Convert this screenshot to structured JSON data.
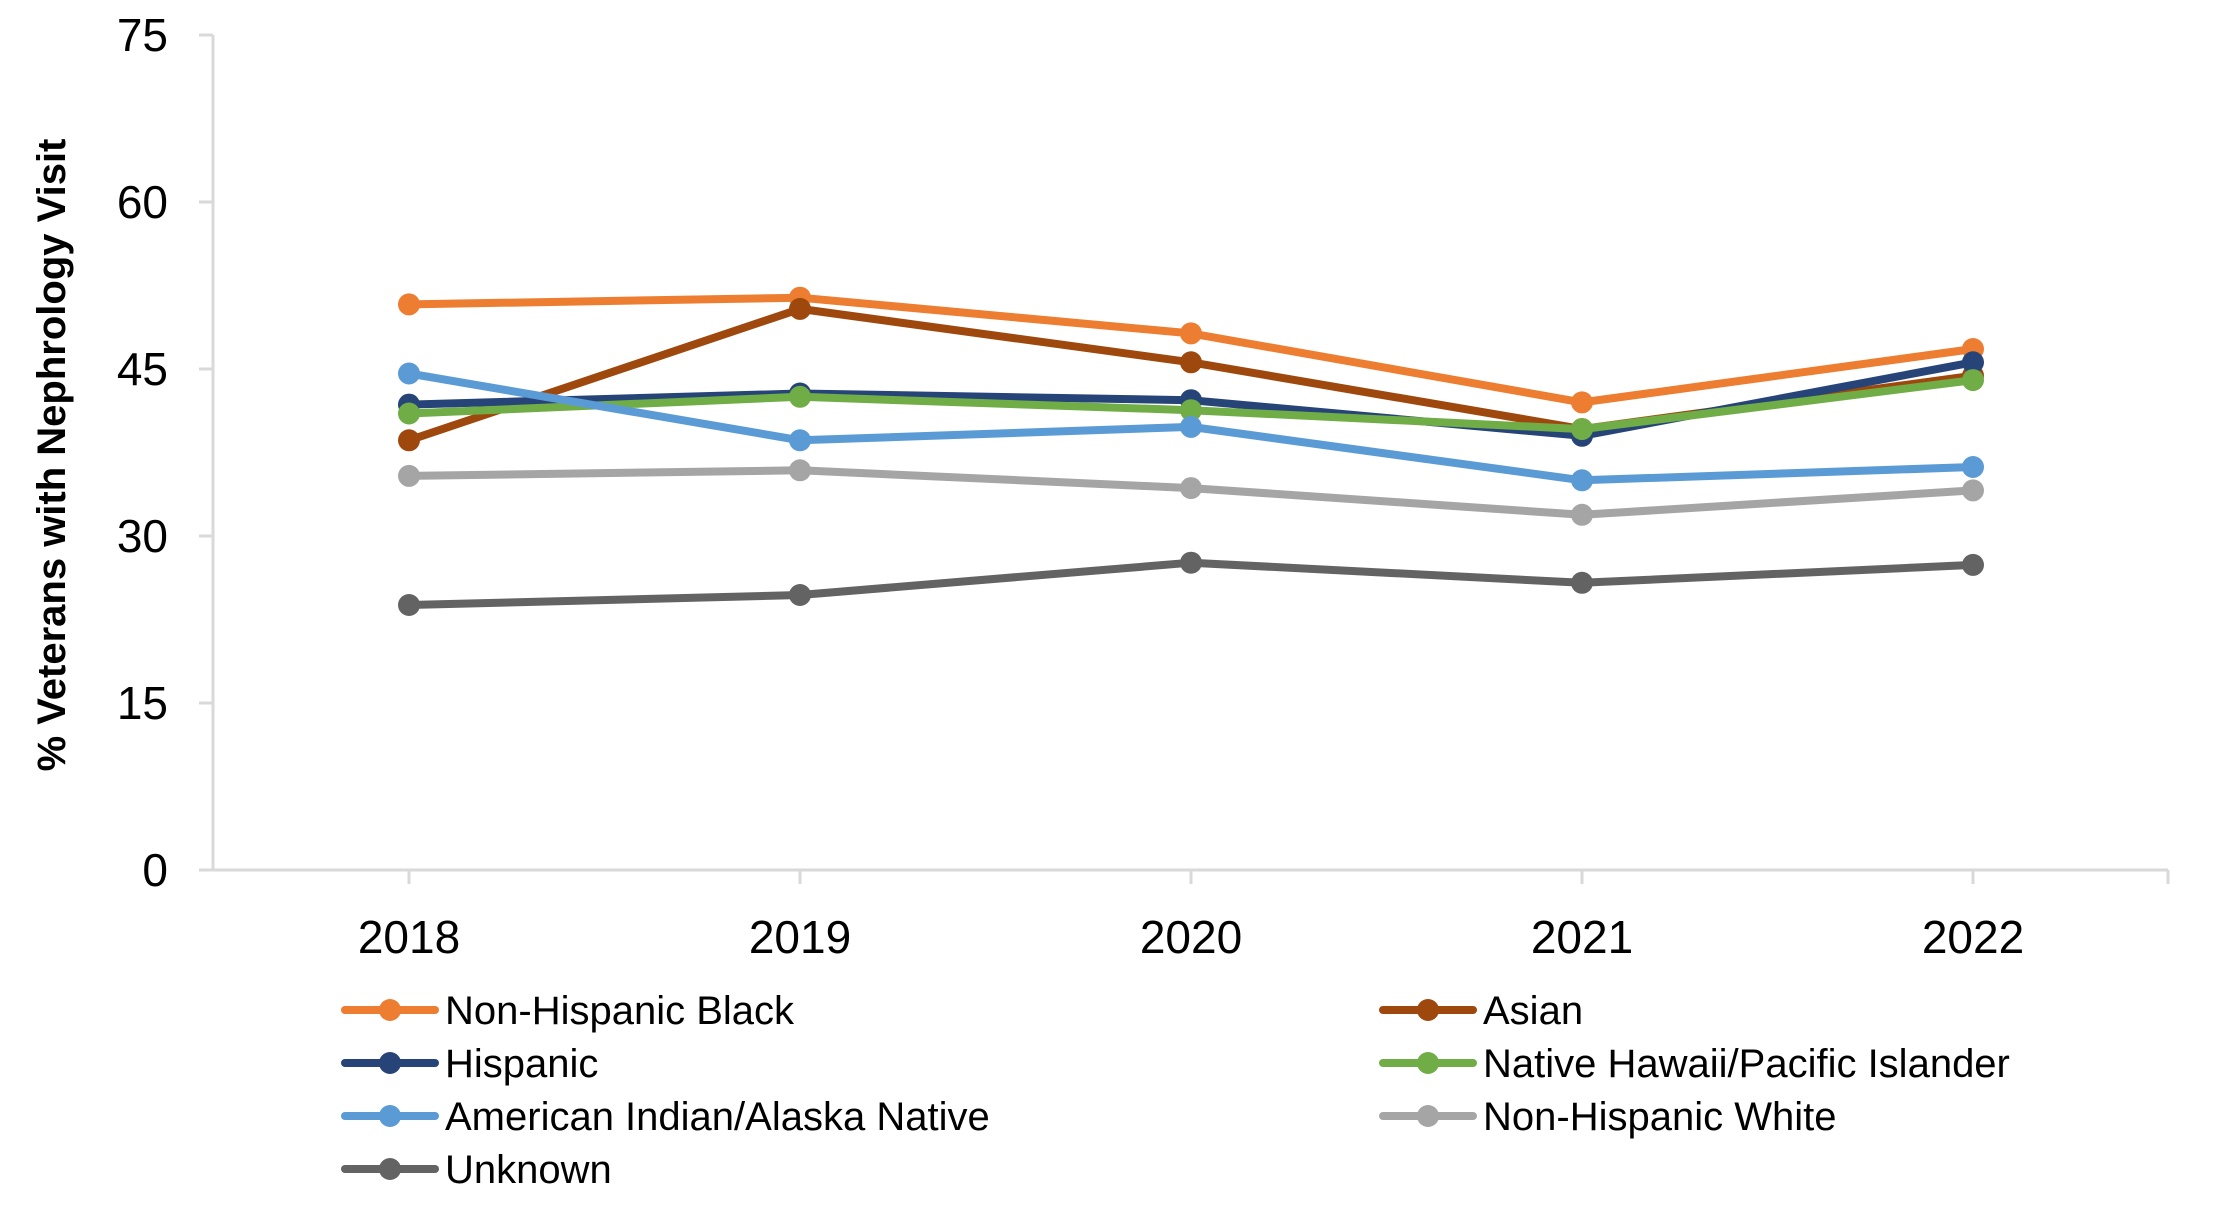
{
  "chart_data": {
    "type": "line",
    "categories": [
      "2018",
      "2019",
      "2020",
      "2021",
      "2022"
    ],
    "ylabel": "% Veterans with Nephrology Visit",
    "xlabel": "",
    "ylim": [
      0,
      75
    ],
    "yticks": [
      "0",
      "15",
      "30",
      "45",
      "60",
      "75"
    ],
    "grid": false,
    "legend_position": "bottom",
    "series": [
      {
        "name": "Non-Hispanic Black",
        "color": "#ED7D31",
        "values": [
          50.8,
          51.4,
          48.2,
          42.0,
          46.8
        ]
      },
      {
        "name": "Asian",
        "color": "#9E480E",
        "values": [
          38.6,
          50.4,
          45.6,
          39.6,
          44.4
        ]
      },
      {
        "name": "Hispanic",
        "color": "#264478",
        "values": [
          41.8,
          42.8,
          42.2,
          39.0,
          45.6
        ]
      },
      {
        "name": "Native Hawaii/Pacific Islander",
        "color": "#70AD47",
        "values": [
          41.0,
          42.5,
          41.3,
          39.6,
          44.0
        ]
      },
      {
        "name": "American Indian/Alaska Native",
        "color": "#5B9BD5",
        "values": [
          44.6,
          38.6,
          39.8,
          35.0,
          36.2
        ]
      },
      {
        "name": "Non-Hispanic White",
        "color": "#A5A5A5",
        "values": [
          35.4,
          35.9,
          34.3,
          31.9,
          34.1
        ]
      },
      {
        "name": "Unknown",
        "color": "#636363",
        "values": [
          23.8,
          24.7,
          27.6,
          25.8,
          27.4
        ]
      }
    ]
  }
}
